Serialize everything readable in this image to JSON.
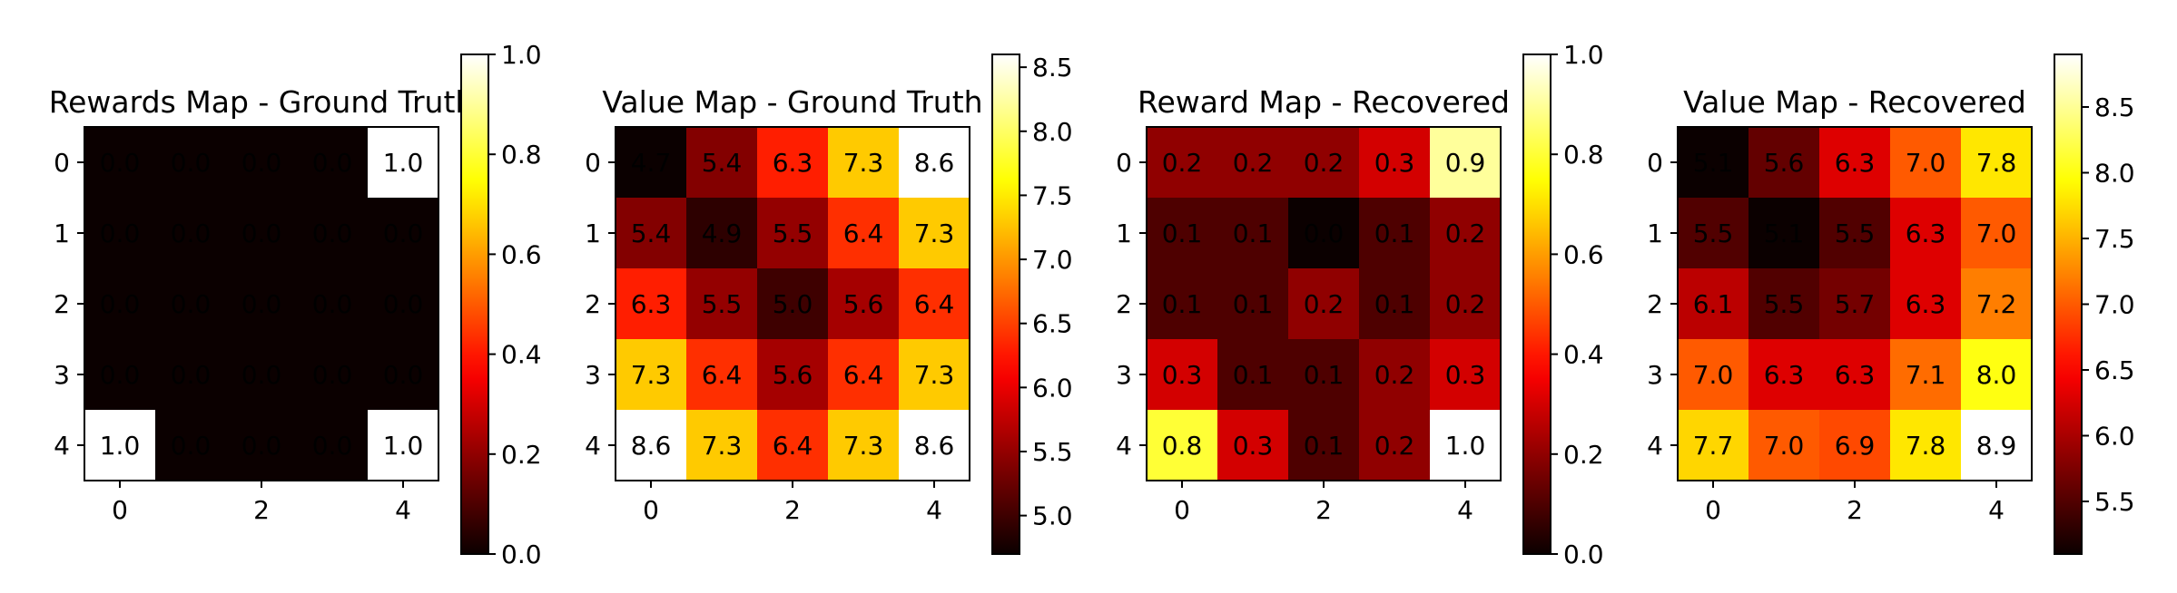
{
  "chart_data": [
    {
      "type": "heatmap",
      "title": "Rewards Map - Ground Truth",
      "colormap": "hot",
      "xticks": [
        "0",
        "2",
        "4"
      ],
      "yticks": [
        "0",
        "1",
        "2",
        "3",
        "4"
      ],
      "values": [
        [
          0.0,
          0.0,
          0.0,
          0.0,
          1.0
        ],
        [
          0.0,
          0.0,
          0.0,
          0.0,
          0.0
        ],
        [
          0.0,
          0.0,
          0.0,
          0.0,
          0.0
        ],
        [
          0.0,
          0.0,
          0.0,
          0.0,
          0.0
        ],
        [
          1.0,
          0.0,
          0.0,
          0.0,
          1.0
        ]
      ],
      "cell_labels": [
        [
          "0.0",
          "0.0",
          "0.0",
          "0.0",
          "1.0"
        ],
        [
          "0.0",
          "0.0",
          "0.0",
          "0.0",
          "0.0"
        ],
        [
          "0.0",
          "0.0",
          "0.0",
          "0.0",
          "0.0"
        ],
        [
          "0.0",
          "0.0",
          "0.0",
          "0.0",
          "0.0"
        ],
        [
          "1.0",
          "0.0",
          "0.0",
          "0.0",
          "1.0"
        ]
      ],
      "colorbar": {
        "min": 0.0,
        "max": 1.0,
        "ticks": [
          "0.0",
          "0.2",
          "0.4",
          "0.6",
          "0.8",
          "1.0"
        ]
      }
    },
    {
      "type": "heatmap",
      "title": "Value Map - Ground Truth",
      "colormap": "hot",
      "xticks": [
        "0",
        "2",
        "4"
      ],
      "yticks": [
        "0",
        "1",
        "2",
        "3",
        "4"
      ],
      "values": [
        [
          4.7,
          5.4,
          6.3,
          7.3,
          8.6
        ],
        [
          5.4,
          4.9,
          5.5,
          6.4,
          7.3
        ],
        [
          6.3,
          5.5,
          5.0,
          5.6,
          6.4
        ],
        [
          7.3,
          6.4,
          5.6,
          6.4,
          7.3
        ],
        [
          8.6,
          7.3,
          6.4,
          7.3,
          8.6
        ]
      ],
      "cell_labels": [
        [
          "4.7",
          "5.4",
          "6.3",
          "7.3",
          "8.6"
        ],
        [
          "5.4",
          "4.9",
          "5.5",
          "6.4",
          "7.3"
        ],
        [
          "6.3",
          "5.5",
          "5.0",
          "5.6",
          "6.4"
        ],
        [
          "7.3",
          "6.4",
          "5.6",
          "6.4",
          "7.3"
        ],
        [
          "8.6",
          "7.3",
          "6.4",
          "7.3",
          "8.6"
        ]
      ],
      "colorbar": {
        "min": 4.7,
        "max": 8.6,
        "ticks": [
          "5.0",
          "5.5",
          "6.0",
          "6.5",
          "7.0",
          "7.5",
          "8.0",
          "8.5"
        ]
      }
    },
    {
      "type": "heatmap",
      "title": "Reward Map - Recovered",
      "colormap": "hot",
      "xticks": [
        "0",
        "2",
        "4"
      ],
      "yticks": [
        "0",
        "1",
        "2",
        "3",
        "4"
      ],
      "values": [
        [
          0.2,
          0.2,
          0.2,
          0.3,
          0.9
        ],
        [
          0.1,
          0.1,
          0.0,
          0.1,
          0.2
        ],
        [
          0.1,
          0.1,
          0.2,
          0.1,
          0.2
        ],
        [
          0.3,
          0.1,
          0.1,
          0.2,
          0.3
        ],
        [
          0.8,
          0.3,
          0.1,
          0.2,
          1.0
        ]
      ],
      "cell_labels": [
        [
          "0.2",
          "0.2",
          "0.2",
          "0.3",
          "0.9"
        ],
        [
          "0.1",
          "0.1",
          "0.0",
          "0.1",
          "0.2"
        ],
        [
          "0.1",
          "0.1",
          "0.2",
          "0.1",
          "0.2"
        ],
        [
          "0.3",
          "0.1",
          "0.1",
          "0.2",
          "0.3"
        ],
        [
          "0.8",
          "0.3",
          "0.1",
          "0.2",
          "1.0"
        ]
      ],
      "colorbar": {
        "min": 0.0,
        "max": 1.0,
        "ticks": [
          "0.0",
          "0.2",
          "0.4",
          "0.6",
          "0.8",
          "1.0"
        ]
      }
    },
    {
      "type": "heatmap",
      "title": "Value Map - Recovered",
      "colormap": "hot",
      "xticks": [
        "0",
        "2",
        "4"
      ],
      "yticks": [
        "0",
        "1",
        "2",
        "3",
        "4"
      ],
      "values": [
        [
          5.1,
          5.6,
          6.3,
          7.0,
          7.8
        ],
        [
          5.5,
          5.1,
          5.5,
          6.3,
          7.0
        ],
        [
          6.1,
          5.5,
          5.7,
          6.3,
          7.2
        ],
        [
          7.0,
          6.3,
          6.3,
          7.1,
          8.0
        ],
        [
          7.7,
          7.0,
          6.9,
          7.8,
          8.9
        ]
      ],
      "cell_labels": [
        [
          "5.1",
          "5.6",
          "6.3",
          "7.0",
          "7.8"
        ],
        [
          "5.5",
          "5.1",
          "5.5",
          "6.3",
          "7.0"
        ],
        [
          "6.1",
          "5.5",
          "5.7",
          "6.3",
          "7.2"
        ],
        [
          "7.0",
          "6.3",
          "6.3",
          "7.1",
          "8.0"
        ],
        [
          "7.7",
          "7.0",
          "6.9",
          "7.8",
          "8.9"
        ]
      ],
      "colorbar": {
        "min": 5.1,
        "max": 8.9,
        "ticks": [
          "5.5",
          "6.0",
          "6.5",
          "7.0",
          "7.5",
          "8.0",
          "8.5"
        ]
      }
    }
  ]
}
